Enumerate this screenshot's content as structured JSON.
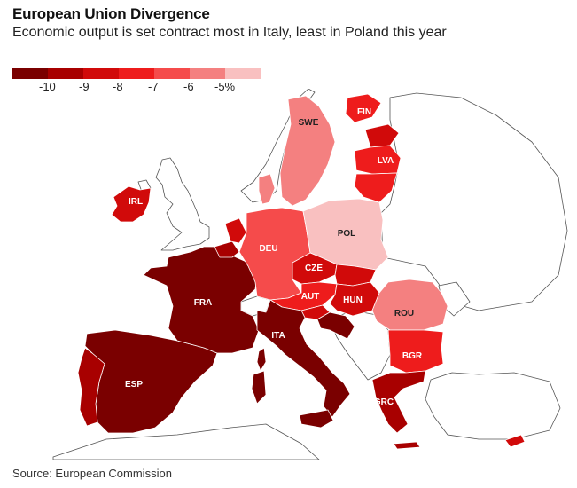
{
  "title": "European Union Divergence",
  "subtitle": "Economic output is set contract most in Italy, least in Poland this year",
  "source": "Source: European Commission",
  "legend": {
    "bins": [
      {
        "color": "#7a0000"
      },
      {
        "color": "#a80000"
      },
      {
        "color": "#d10a0a"
      },
      {
        "color": "#ee1c1c"
      },
      {
        "color": "#f54b4b"
      },
      {
        "color": "#f48080"
      },
      {
        "color": "#f9c0c0"
      }
    ],
    "labels": [
      "-10",
      "-9",
      "-8",
      "-7",
      "-6",
      "-5%"
    ]
  },
  "colors": {
    "nodata": "#ffffff",
    "border": "#555555",
    "sea": "#ffffff"
  },
  "countries": [
    {
      "code": "FRA",
      "label_color": "#ffffff",
      "fill": "#7a0000"
    },
    {
      "code": "ESP",
      "label_color": "#ffffff",
      "fill": "#7a0000"
    },
    {
      "code": "ITA",
      "label_color": "#ffffff",
      "fill": "#7a0000"
    },
    {
      "code": "DEU",
      "label_color": "#ffffff",
      "fill": "#f54b4b"
    },
    {
      "code": "POL",
      "label_color": "#222222",
      "fill": "#f9c0c0"
    },
    {
      "code": "CZE",
      "label_color": "#ffffff",
      "fill": "#d10a0a"
    },
    {
      "code": "AUT",
      "label_color": "#ffffff",
      "fill": "#ee1c1c"
    },
    {
      "code": "HUN",
      "label_color": "#ffffff",
      "fill": "#d10a0a"
    },
    {
      "code": "ROU",
      "label_color": "#222222",
      "fill": "#f48080"
    },
    {
      "code": "BGR",
      "label_color": "#ffffff",
      "fill": "#ee1c1c"
    },
    {
      "code": "GRC",
      "label_color": "#ffffff",
      "fill": "#a80000"
    },
    {
      "code": "IRL",
      "label_color": "#ffffff",
      "fill": "#d10a0a"
    },
    {
      "code": "SWE",
      "label_color": "#222222",
      "fill": "#f48080"
    },
    {
      "code": "FIN",
      "label_color": "#ffffff",
      "fill": "#ee1c1c"
    },
    {
      "code": "LVA",
      "label_color": "#ffffff",
      "fill": "#ee1c1c"
    }
  ]
}
